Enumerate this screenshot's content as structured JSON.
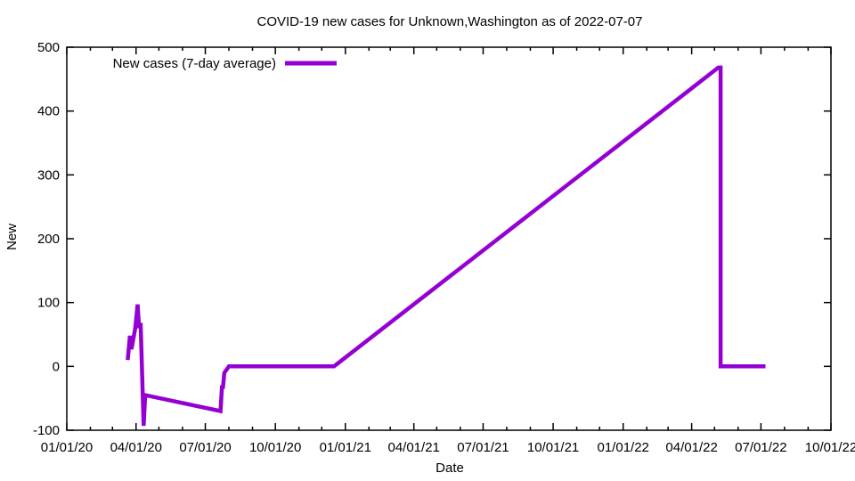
{
  "window": {
    "background": "#ffffff",
    "border_color": "#000000",
    "text_color": "#000000"
  },
  "chart_data": {
    "type": "line",
    "title": "COVID-19 new cases for Unknown,Washington as of 2022-07-07",
    "xlabel": "Date",
    "ylabel": "New",
    "grid": false,
    "legend_position": "top-left-inside",
    "ylim": [
      -100,
      500
    ],
    "y_ticks": [
      -100,
      0,
      100,
      200,
      300,
      400,
      500
    ],
    "x_range": [
      "2020-01-01",
      "2022-10-01"
    ],
    "x_ticks": [
      {
        "date": "2020-01-01",
        "label": "01/01/20"
      },
      {
        "date": "2020-04-01",
        "label": "04/01/20"
      },
      {
        "date": "2020-07-01",
        "label": "07/01/20"
      },
      {
        "date": "2020-10-01",
        "label": "10/01/20"
      },
      {
        "date": "2021-01-01",
        "label": "01/01/21"
      },
      {
        "date": "2021-04-01",
        "label": "04/01/21"
      },
      {
        "date": "2021-07-01",
        "label": "07/01/21"
      },
      {
        "date": "2021-10-01",
        "label": "10/01/21"
      },
      {
        "date": "2022-01-01",
        "label": "01/01/22"
      },
      {
        "date": "2022-04-01",
        "label": "04/01/22"
      },
      {
        "date": "2022-07-01",
        "label": "07/01/22"
      },
      {
        "date": "2022-10-01",
        "label": "10/01/22"
      }
    ],
    "minor_ticks": "monthly",
    "series": [
      {
        "name": "New cases (7-day average)",
        "color": "#9400D3",
        "line_width": 4.5,
        "points": [
          [
            "2020-03-21",
            10
          ],
          [
            "2020-03-24",
            48
          ],
          [
            "2020-03-26",
            27
          ],
          [
            "2020-03-31",
            60
          ],
          [
            "2020-04-03",
            97
          ],
          [
            "2020-04-05",
            60
          ],
          [
            "2020-04-07",
            68
          ],
          [
            "2020-04-08",
            30
          ],
          [
            "2020-04-11",
            -93
          ],
          [
            "2020-04-13",
            -45
          ],
          [
            "2020-07-21",
            -70
          ],
          [
            "2020-07-23",
            -30
          ],
          [
            "2020-07-24",
            -35
          ],
          [
            "2020-07-26",
            -10
          ],
          [
            "2020-08-01",
            0
          ],
          [
            "2020-12-17",
            0
          ],
          [
            "2022-05-06",
            468
          ],
          [
            "2022-05-09",
            468
          ],
          [
            "2022-05-09",
            0
          ],
          [
            "2022-07-07",
            0
          ]
        ]
      }
    ]
  }
}
